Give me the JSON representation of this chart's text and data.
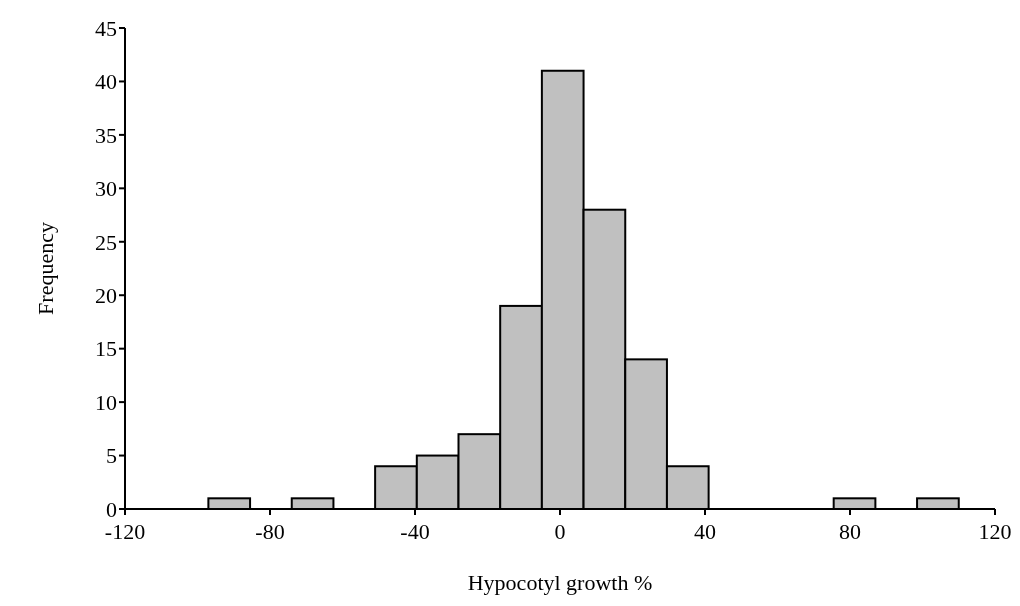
{
  "chart_data": {
    "type": "histogram",
    "xlabel": "Hypocotyl growth %",
    "ylabel": "Frequency",
    "bins": [
      -120,
      -108.5,
      -97,
      -85.5,
      -74,
      -62.5,
      -51,
      -39.5,
      -28,
      -16.5,
      -5,
      6.5,
      18,
      29.5,
      41,
      52.5,
      64,
      75.5,
      87,
      98.5,
      110
    ],
    "values": [
      0,
      0,
      1,
      0,
      1,
      0,
      4,
      5,
      7,
      19,
      41,
      28,
      14,
      4,
      0,
      0,
      0,
      1,
      0,
      1
    ],
    "color": "#c0c0c0",
    "xlim": [
      -120,
      120
    ],
    "xticks": [
      -120,
      -80,
      -40,
      0,
      40,
      80,
      120
    ],
    "ylim": [
      0,
      45
    ],
    "yticks": [
      0,
      5,
      10,
      15,
      20,
      25,
      30,
      35,
      40,
      45
    ],
    "grid": false,
    "legend": false
  }
}
